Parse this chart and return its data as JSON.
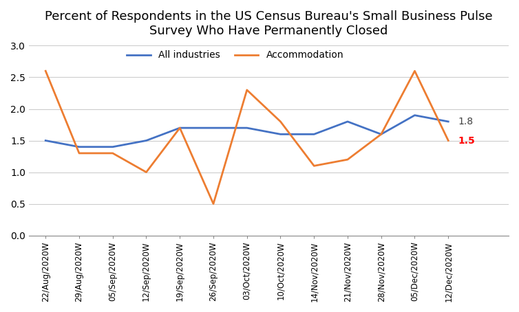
{
  "title": "Percent of Respondents in the US Census Bureau's Small Business Pulse\nSurvey Who Have Permanently Closed",
  "x_labels": [
    "22/Aug/2020W",
    "29/Aug/2020W",
    "05/Sep/2020W",
    "12/Sep/2020W",
    "19/Sep/2020W",
    "26/Sep/2020W",
    "03/Oct/2020W",
    "10/Oct/2020W",
    "14/Nov/2020W",
    "21/Nov/2020W",
    "28/Nov/2020W",
    "05/Dec/2020W",
    "12/Dec/2020W"
  ],
  "all_industries": [
    1.5,
    1.4,
    1.4,
    1.5,
    1.7,
    1.7,
    1.7,
    1.6,
    1.6,
    1.8,
    1.6,
    1.9,
    1.8
  ],
  "accommodation": [
    2.6,
    1.3,
    1.3,
    1.0,
    1.7,
    0.5,
    2.3,
    1.8,
    1.1,
    1.2,
    1.6,
    2.6,
    1.5
  ],
  "all_color": "#4472C4",
  "acc_color": "#ED7D31",
  "ylim": [
    0.0,
    3.0
  ],
  "yticks": [
    0.0,
    0.5,
    1.0,
    1.5,
    2.0,
    2.5,
    3.0
  ],
  "label_all": "All industries",
  "label_acc": "Accommodation",
  "end_label_all": "1.8",
  "end_label_acc": "1.5",
  "end_label_all_color": "#404040",
  "end_label_acc_color": "#FF0000"
}
